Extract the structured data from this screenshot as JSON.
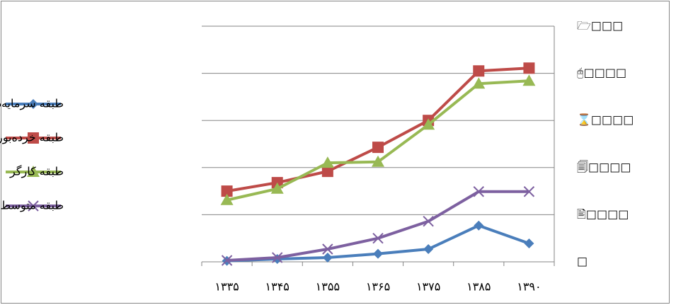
{
  "chart_data": {
    "type": "line",
    "categories": [
      "۱۳۳۵",
      "۱۳۴۵",
      "۱۳۵۵",
      "۱۳۶۵",
      "۱۳۷۵",
      "۱۳۸۵",
      "۱۳۹۰"
    ],
    "series": [
      {
        "name": "طبقه سرمایه‌دار",
        "color": "#4a7ebb",
        "marker": "diamond",
        "values": [
          0.2,
          0.6,
          0.9,
          1.7,
          2.7,
          7.7,
          3.9
        ]
      },
      {
        "name": "طبقه خرده‌بورژوا",
        "color": "#be4b48",
        "marker": "square",
        "values": [
          15,
          16.8,
          19.2,
          24.3,
          30,
          40.5,
          41.1
        ]
      },
      {
        "name": "طبقه کارگر",
        "color": "#98b954",
        "marker": "triangle",
        "values": [
          13.1,
          15.5,
          21,
          21.2,
          29.1,
          37.8,
          38.4
        ]
      },
      {
        "name": "طبقه متوسط",
        "color": "#7d60a0",
        "marker": "x",
        "values": [
          0.3,
          0.9,
          2.7,
          5,
          8.6,
          14.9,
          14.9
        ]
      }
    ],
    "ylim": [
      0,
      50
    ],
    "yticks": [
      {
        "value": 0,
        "label": "□"
      },
      {
        "value": 10,
        "label": "🖹□□□□"
      },
      {
        "value": 20,
        "label": "🗐□□□□"
      },
      {
        "value": 30,
        "label": "⌛□□□□"
      },
      {
        "value": 40,
        "label": "🖰□□□□"
      },
      {
        "value": 50,
        "label": "🗁□□□"
      }
    ],
    "grid": true,
    "legend": "left"
  }
}
